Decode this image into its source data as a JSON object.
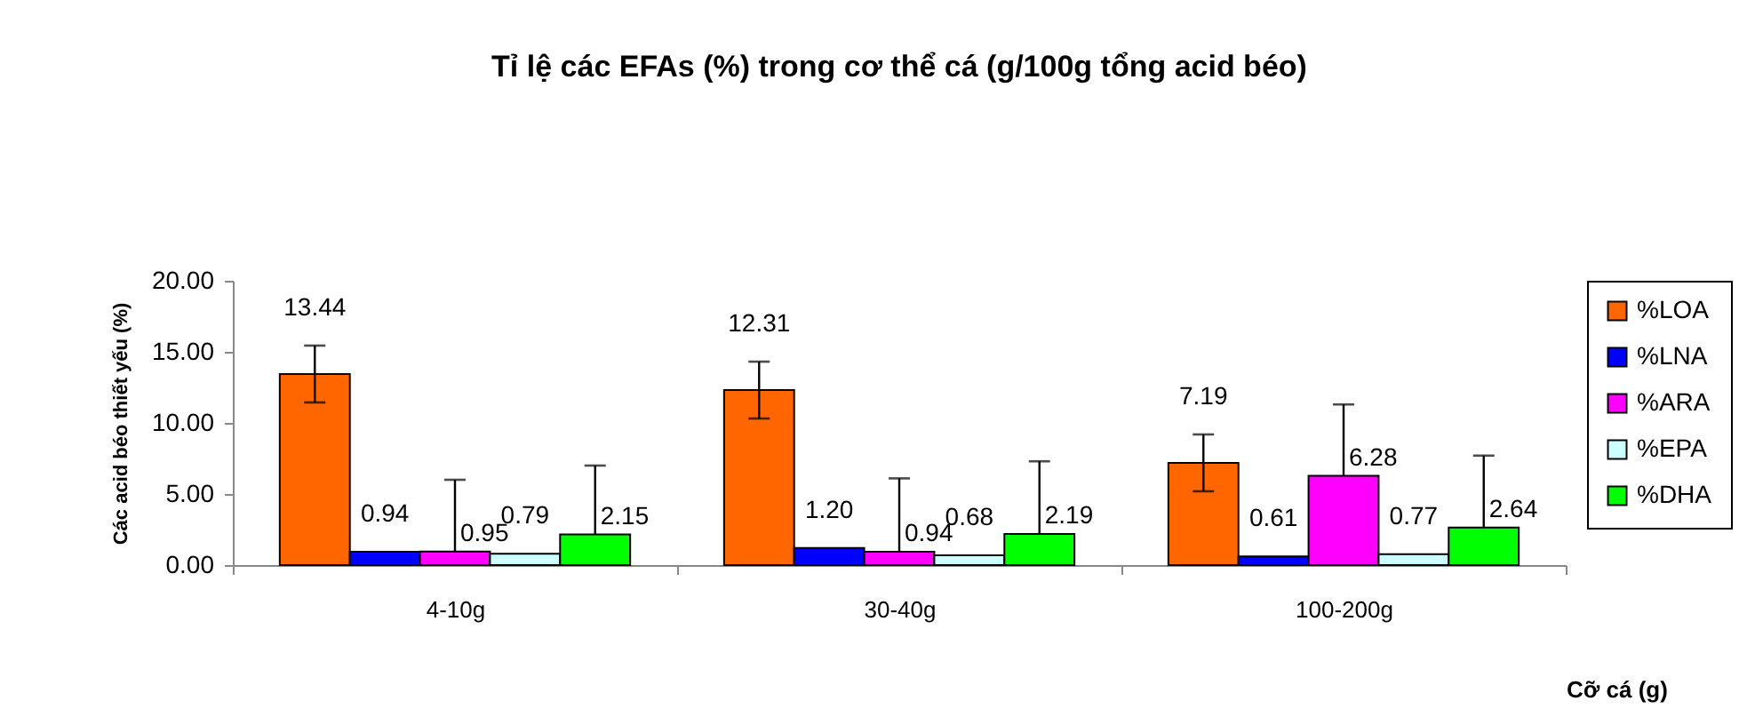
{
  "chart_data": {
    "type": "bar",
    "title": "Tỉ lệ các EFAs (%) trong cơ thể cá (g/100g tổng acid béo)",
    "xlabel": "Cỡ cá (g)",
    "ylabel": "Các acid béo thiết yếu (%)",
    "categories": [
      "4-10g",
      "30-40g",
      "100-200g"
    ],
    "series": [
      {
        "name": "%LOA",
        "color": "#ff6600",
        "values": [
          13.44,
          12.31,
          7.19
        ],
        "value_labels": [
          "13.44",
          "12.31",
          "7.19"
        ],
        "errors": [
          2.0,
          2.0,
          2.0
        ]
      },
      {
        "name": "%LNA",
        "color": "#0000ff",
        "values": [
          0.94,
          1.2,
          0.61
        ],
        "value_labels": [
          "0.94",
          "1.20",
          "0.61"
        ]
      },
      {
        "name": "%ARA",
        "color": "#ff00ff",
        "values": [
          0.95,
          0.94,
          6.28
        ],
        "value_labels": [
          "0.95",
          "0.94",
          "6.28"
        ],
        "errors": [
          [
            0.95,
            6.0
          ],
          [
            0.94,
            6.1
          ],
          [
            6.28,
            11.3
          ]
        ]
      },
      {
        "name": "%EPA",
        "color": "#ccffff",
        "values": [
          0.79,
          0.68,
          0.77
        ],
        "value_labels": [
          "0.79",
          "0.68",
          "0.77"
        ]
      },
      {
        "name": "%DHA",
        "color": "#00ff00",
        "values": [
          2.15,
          2.19,
          2.64
        ],
        "value_labels": [
          "2.15",
          "2.19",
          "2.64"
        ],
        "errors": [
          [
            2.15,
            7.0
          ],
          [
            2.19,
            7.3
          ],
          [
            2.64,
            7.7
          ]
        ]
      }
    ],
    "ylim": [
      0,
      20
    ],
    "yticks": [
      {
        "value": 0,
        "label": "0.00"
      },
      {
        "value": 5,
        "label": "5.00"
      },
      {
        "value": 10,
        "label": "10.00"
      },
      {
        "value": 15,
        "label": "15.00"
      },
      {
        "value": 20,
        "label": "20.00"
      }
    ],
    "grid": false,
    "legend": "right"
  }
}
